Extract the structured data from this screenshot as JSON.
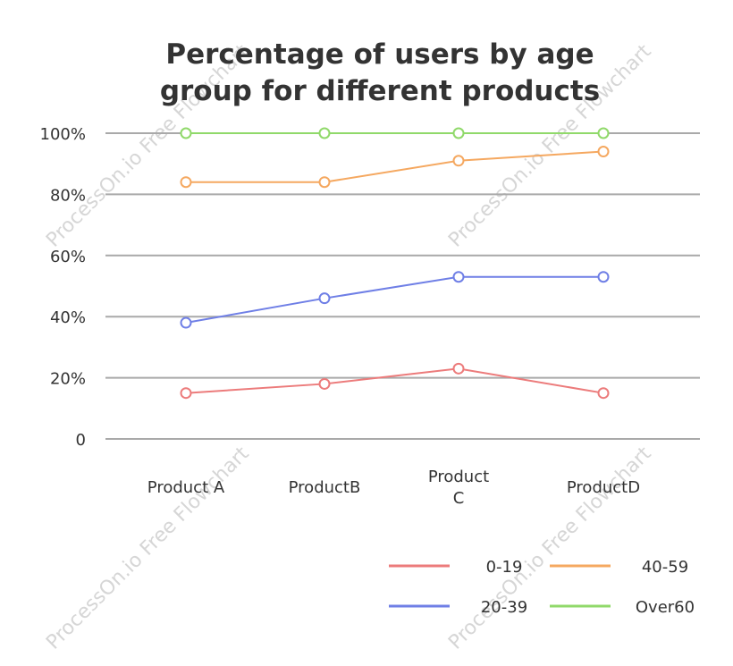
{
  "chart_data": {
    "type": "line",
    "title_lines": [
      "Percentage of users by age",
      "group for different products"
    ],
    "categories": [
      "Product A",
      "ProductB",
      "Product\nC",
      "ProductD"
    ],
    "y_ticks": [
      "0",
      "20%",
      "40%",
      "60%",
      "80%",
      "100%"
    ],
    "ylim": [
      0,
      100
    ],
    "legend_position": "bottom-right",
    "grid": true,
    "series": [
      {
        "name": "0-19",
        "color": "#ec7b7b",
        "values": [
          15,
          18,
          23,
          15
        ]
      },
      {
        "name": "20-39",
        "color": "#6f7fe6",
        "values": [
          38,
          46,
          53,
          53
        ]
      },
      {
        "name": "40-59",
        "color": "#f5a860",
        "values": [
          84,
          84,
          91,
          94
        ]
      },
      {
        "name": "Over60",
        "color": "#90d96a",
        "values": [
          100,
          100,
          100,
          100
        ]
      }
    ]
  },
  "watermark_text": "ProcessOn.io Free Flowchart"
}
